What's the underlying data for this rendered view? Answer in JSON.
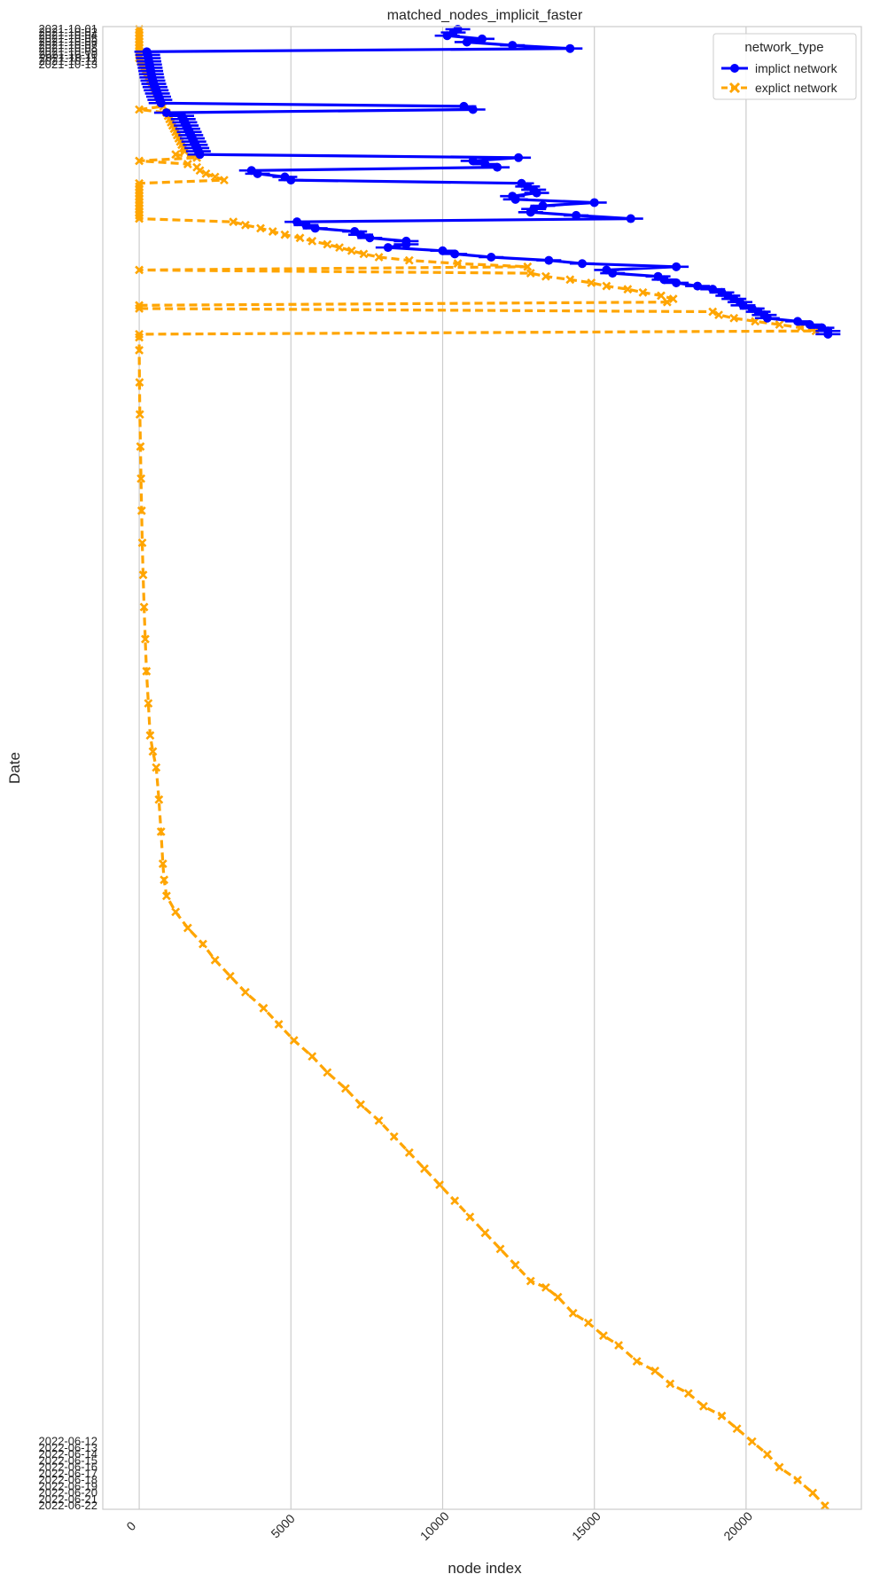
{
  "chart_data": {
    "type": "line",
    "orientation": "horizontal",
    "title": "matched_nodes_implicit_faster",
    "xlabel": "node index",
    "ylabel": "Date",
    "xlim": [
      -1200,
      23800
    ],
    "x_ticks": [
      0,
      5000,
      10000,
      15000,
      20000
    ],
    "x_tick_labels": [
      "0",
      "5000",
      "10000",
      "15000",
      "20000"
    ],
    "grid": "vertical",
    "legend": {
      "title": "network_type",
      "position": "top-right"
    },
    "y_labels_top": [
      "2021-10-01",
      "2021-10-02",
      "2021-10-04",
      "2021-10-05",
      "2021-10-06",
      "2021-10-07",
      "2021-10-08",
      "2021-10-09",
      "2021-10-10",
      "2021-10-11",
      "2021-10-12",
      "2021-10-13"
    ],
    "y_labels_bottom": [
      "2022-06-12",
      "2022-06-13",
      "2022-06-14",
      "2022-06-15",
      "2022-06-16",
      "2022-06-17",
      "2022-06-18",
      "2022-06-19",
      "2022-06-20",
      "2022-06-21",
      "2022-06-22"
    ],
    "series": [
      {
        "name": "implict network",
        "color": "#0000ff",
        "marker": "circle",
        "linestyle": "solid",
        "points": [
          [
            10500,
            0
          ],
          [
            10350,
            1
          ],
          [
            10150,
            2
          ],
          [
            11300,
            3
          ],
          [
            10800,
            4
          ],
          [
            12300,
            5
          ],
          [
            14200,
            6
          ],
          [
            250,
            7
          ],
          [
            280,
            8
          ],
          [
            300,
            9
          ],
          [
            320,
            10
          ],
          [
            340,
            11
          ],
          [
            360,
            12
          ],
          [
            380,
            13
          ],
          [
            400,
            14
          ],
          [
            420,
            15
          ],
          [
            450,
            16
          ],
          [
            480,
            17
          ],
          [
            520,
            18
          ],
          [
            560,
            19
          ],
          [
            600,
            20
          ],
          [
            640,
            21
          ],
          [
            680,
            22
          ],
          [
            720,
            23
          ],
          [
            10700,
            24
          ],
          [
            11000,
            25
          ],
          [
            900,
            26
          ],
          [
            1400,
            27
          ],
          [
            1450,
            28
          ],
          [
            1500,
            29
          ],
          [
            1550,
            30
          ],
          [
            1600,
            31
          ],
          [
            1650,
            32
          ],
          [
            1700,
            33
          ],
          [
            1750,
            34
          ],
          [
            1800,
            35
          ],
          [
            1850,
            36
          ],
          [
            1900,
            37
          ],
          [
            1950,
            38
          ],
          [
            2000,
            39
          ],
          [
            12500,
            40
          ],
          [
            11000,
            41
          ],
          [
            11400,
            42
          ],
          [
            11800,
            43
          ],
          [
            3700,
            44
          ],
          [
            3900,
            45
          ],
          [
            4800,
            46
          ],
          [
            5000,
            47
          ],
          [
            12600,
            48
          ],
          [
            12800,
            49
          ],
          [
            13000,
            50
          ],
          [
            13100,
            51
          ],
          [
            12300,
            52
          ],
          [
            12400,
            53
          ],
          [
            15000,
            54
          ],
          [
            13300,
            55
          ],
          [
            13000,
            56
          ],
          [
            12900,
            57
          ],
          [
            14400,
            58
          ],
          [
            16200,
            59
          ],
          [
            5200,
            60
          ],
          [
            5500,
            61
          ],
          [
            5800,
            62
          ],
          [
            7100,
            63
          ],
          [
            7300,
            64
          ],
          [
            7600,
            65
          ],
          [
            8800,
            66
          ],
          [
            8800,
            67
          ],
          [
            8200,
            68
          ],
          [
            10000,
            69
          ],
          [
            10400,
            70
          ],
          [
            11600,
            71
          ],
          [
            13500,
            72
          ],
          [
            14600,
            73
          ],
          [
            17700,
            74
          ],
          [
            15400,
            75
          ],
          [
            15600,
            76
          ],
          [
            17100,
            77
          ],
          [
            17300,
            78
          ],
          [
            17700,
            79
          ],
          [
            18400,
            80
          ],
          [
            18900,
            81
          ],
          [
            19200,
            82
          ],
          [
            19400,
            83
          ],
          [
            19600,
            84
          ],
          [
            19800,
            85
          ],
          [
            19900,
            86
          ],
          [
            20200,
            87
          ],
          [
            20400,
            88
          ],
          [
            20600,
            89
          ],
          [
            20700,
            90
          ],
          [
            21700,
            91
          ],
          [
            22100,
            92
          ],
          [
            22500,
            93
          ],
          [
            22700,
            94
          ],
          [
            22700,
            95
          ]
        ]
      },
      {
        "name": "explict network",
        "color": "#ffa500",
        "marker": "x",
        "linestyle": "dashed",
        "points": [
          [
            0,
            0
          ],
          [
            0,
            1
          ],
          [
            0,
            2
          ],
          [
            0,
            3
          ],
          [
            0,
            4
          ],
          [
            0,
            5
          ],
          [
            0,
            6
          ],
          [
            0,
            7
          ],
          [
            0,
            8
          ],
          [
            0,
            9
          ],
          [
            50,
            10
          ],
          [
            100,
            11
          ],
          [
            150,
            12
          ],
          [
            200,
            13
          ],
          [
            250,
            14
          ],
          [
            300,
            15
          ],
          [
            350,
            16
          ],
          [
            400,
            17
          ],
          [
            450,
            18
          ],
          [
            500,
            19
          ],
          [
            550,
            20
          ],
          [
            600,
            21
          ],
          [
            650,
            22
          ],
          [
            700,
            23
          ],
          [
            800,
            24
          ],
          [
            0,
            25
          ],
          [
            900,
            26
          ],
          [
            950,
            27
          ],
          [
            1000,
            28
          ],
          [
            1050,
            29
          ],
          [
            1100,
            30
          ],
          [
            1150,
            31
          ],
          [
            1200,
            32
          ],
          [
            1250,
            33
          ],
          [
            1300,
            34
          ],
          [
            1350,
            35
          ],
          [
            1400,
            36
          ],
          [
            1450,
            37
          ],
          [
            1500,
            38
          ],
          [
            1200,
            39
          ],
          [
            1900,
            40
          ],
          [
            0,
            41
          ],
          [
            1600,
            42
          ],
          [
            1900,
            43
          ],
          [
            2000,
            44
          ],
          [
            2200,
            45
          ],
          [
            2500,
            46
          ],
          [
            2800,
            47
          ],
          [
            0,
            48
          ],
          [
            0,
            49
          ],
          [
            0,
            50
          ],
          [
            0,
            51
          ],
          [
            0,
            52
          ],
          [
            0,
            53
          ],
          [
            0,
            54
          ],
          [
            0,
            55
          ],
          [
            0,
            56
          ],
          [
            0,
            57
          ],
          [
            0,
            58
          ],
          [
            0,
            59
          ],
          [
            3100,
            60
          ],
          [
            3500,
            61
          ],
          [
            4000,
            62
          ],
          [
            4400,
            63
          ],
          [
            4800,
            64
          ],
          [
            5300,
            65
          ],
          [
            5700,
            66
          ],
          [
            6200,
            67
          ],
          [
            6600,
            68
          ],
          [
            7000,
            69
          ],
          [
            7400,
            70
          ],
          [
            7900,
            71
          ],
          [
            8900,
            72
          ],
          [
            10500,
            73
          ],
          [
            12800,
            74
          ],
          [
            0,
            75
          ],
          [
            12900,
            76
          ],
          [
            13400,
            77
          ],
          [
            14200,
            78
          ],
          [
            14900,
            79
          ],
          [
            15400,
            80
          ],
          [
            16100,
            81
          ],
          [
            16600,
            82
          ],
          [
            17200,
            83
          ],
          [
            17600,
            84
          ],
          [
            17400,
            85
          ],
          [
            0,
            86
          ],
          [
            0,
            87
          ],
          [
            18900,
            88
          ],
          [
            19100,
            89
          ],
          [
            19600,
            90
          ],
          [
            20300,
            91
          ],
          [
            21100,
            92
          ],
          [
            21800,
            93
          ],
          [
            22300,
            94
          ],
          [
            0,
            95
          ],
          [
            0,
            96
          ],
          [
            0,
            100
          ],
          [
            10,
            110
          ],
          [
            20,
            120
          ],
          [
            40,
            130
          ],
          [
            60,
            140
          ],
          [
            80,
            150
          ],
          [
            100,
            160
          ],
          [
            130,
            170
          ],
          [
            160,
            180
          ],
          [
            200,
            190
          ],
          [
            240,
            200
          ],
          [
            300,
            210
          ],
          [
            360,
            220
          ],
          [
            450,
            225
          ],
          [
            560,
            230
          ],
          [
            650,
            240
          ],
          [
            720,
            250
          ],
          [
            780,
            260
          ],
          [
            820,
            265
          ],
          [
            900,
            270
          ],
          [
            1200,
            275
          ],
          [
            1600,
            280
          ],
          [
            2100,
            285
          ],
          [
            2500,
            290
          ],
          [
            3000,
            295
          ],
          [
            3500,
            300
          ],
          [
            4100,
            305
          ],
          [
            4600,
            310
          ],
          [
            5100,
            315
          ],
          [
            5700,
            320
          ],
          [
            6200,
            325
          ],
          [
            6800,
            330
          ],
          [
            7300,
            335
          ],
          [
            7900,
            340
          ],
          [
            8400,
            345
          ],
          [
            8900,
            350
          ],
          [
            9400,
            355
          ],
          [
            9900,
            360
          ],
          [
            10400,
            365
          ],
          [
            10900,
            370
          ],
          [
            11400,
            375
          ],
          [
            11900,
            380
          ],
          [
            12400,
            385
          ],
          [
            12900,
            390
          ],
          [
            13400,
            392
          ],
          [
            13800,
            395
          ],
          [
            14300,
            400
          ],
          [
            14800,
            403
          ],
          [
            15300,
            407
          ],
          [
            15800,
            410
          ],
          [
            16400,
            415
          ],
          [
            17000,
            418
          ],
          [
            17500,
            422
          ],
          [
            18100,
            425
          ],
          [
            18600,
            429
          ],
          [
            19200,
            432
          ],
          [
            19700,
            436
          ],
          [
            20200,
            440
          ],
          [
            20700,
            444
          ],
          [
            21100,
            448
          ],
          [
            21700,
            452
          ],
          [
            22200,
            456
          ],
          [
            22600,
            460
          ]
        ]
      }
    ]
  }
}
